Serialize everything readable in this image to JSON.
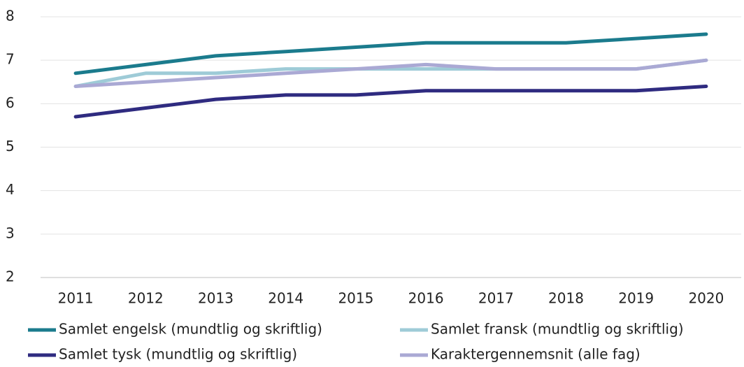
{
  "chart_data": {
    "type": "line",
    "categories": [
      "2011",
      "2012",
      "2013",
      "2014",
      "2015",
      "2016",
      "2017",
      "2018",
      "2019",
      "2020"
    ],
    "series": [
      {
        "name": "Samlet engelsk (mundtlig og skriftlig)",
        "color": "#1b7b8d",
        "values": [
          6.7,
          6.9,
          7.1,
          7.2,
          7.3,
          7.4,
          7.4,
          7.4,
          7.5,
          7.6
        ]
      },
      {
        "name": "Samlet fransk (mundtlig og skriftlig)",
        "color": "#9ecbd7",
        "values": [
          6.4,
          6.7,
          6.7,
          6.8,
          6.8,
          6.8,
          6.8,
          6.8,
          6.8,
          7.0
        ]
      },
      {
        "name": "Samlet tysk (mundtlig og skriftlig)",
        "color": "#2f2b80",
        "values": [
          5.7,
          5.9,
          6.1,
          6.2,
          6.2,
          6.3,
          6.3,
          6.3,
          6.3,
          6.4
        ]
      },
      {
        "name": "Karaktergennemsnit (alle fag)",
        "color": "#aaa9d4",
        "values": [
          6.4,
          6.5,
          6.6,
          6.7,
          6.8,
          6.9,
          6.8,
          6.8,
          6.8,
          7.0
        ]
      }
    ],
    "ylim": [
      2,
      8
    ],
    "yticks": [
      2,
      3,
      4,
      5,
      6,
      7,
      8
    ],
    "grid": true,
    "legend": "bottom"
  }
}
